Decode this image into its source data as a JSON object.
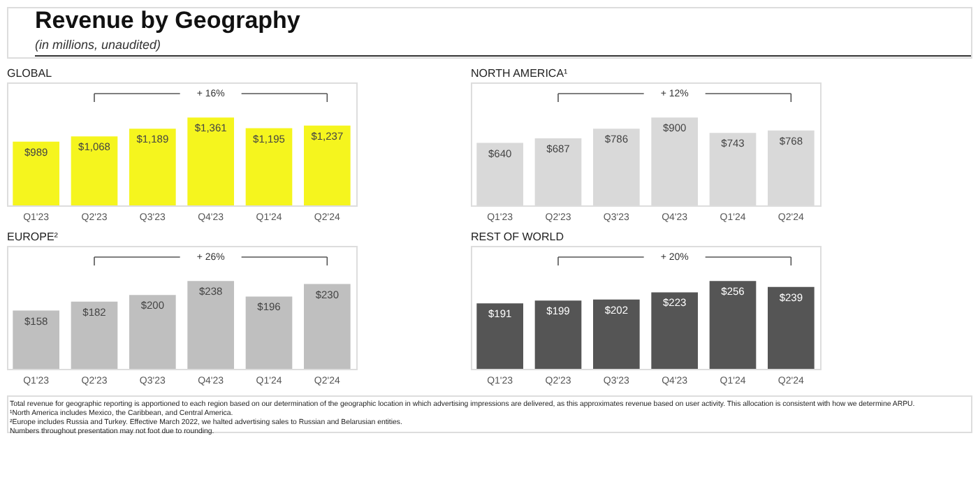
{
  "chart_data": [
    {
      "type": "other",
      "title": "Revenue by Geography",
      "subtitle": "(in millions, unaudited)"
    },
    {
      "type": "bar",
      "title": "GLOBAL",
      "categories": [
        "Q1'23",
        "Q2'23",
        "Q3'23",
        "Q4'23",
        "Q1'24",
        "Q2'24"
      ],
      "values": [
        989,
        1068,
        1189,
        1361,
        1195,
        1237
      ],
      "value_labels": [
        "$989",
        "$1,068",
        "$1,189",
        "$1,361",
        "$1,195",
        "$1,237"
      ],
      "color": "#f5f51e",
      "annotations": [
        "+ 16%"
      ]
    },
    {
      "type": "bar",
      "title": "NORTH AMERICA¹",
      "categories": [
        "Q1'23",
        "Q2'23",
        "Q3'23",
        "Q4'23",
        "Q1'24",
        "Q2'24"
      ],
      "values": [
        640,
        687,
        786,
        900,
        743,
        768
      ],
      "value_labels": [
        "$640",
        "$687",
        "$786",
        "$900",
        "$743",
        "$768"
      ],
      "color": "#d9d9d9",
      "annotations": [
        "+ 12%"
      ]
    },
    {
      "type": "bar",
      "title": "EUROPE²",
      "categories": [
        "Q1'23",
        "Q2'23",
        "Q3'23",
        "Q4'23",
        "Q1'24",
        "Q2'24"
      ],
      "values": [
        158,
        182,
        200,
        238,
        196,
        230
      ],
      "value_labels": [
        "$158",
        "$182",
        "$200",
        "$238",
        "$196",
        "$230"
      ],
      "color": "#bfbfbf",
      "annotations": [
        "+ 26%"
      ]
    },
    {
      "type": "bar",
      "title": "REST OF WORLD",
      "categories": [
        "Q1'23",
        "Q2'23",
        "Q3'23",
        "Q4'23",
        "Q1'24",
        "Q2'24"
      ],
      "values": [
        191,
        199,
        202,
        223,
        256,
        239
      ],
      "value_labels": [
        "$191",
        "$199",
        "$202",
        "$223",
        "$256",
        "$239"
      ],
      "color": "#555555",
      "annotations": [
        "+ 20%"
      ]
    },
    {
      "type": "other",
      "annotations": [
        "Total revenue for geographic reporting is apportioned to each region based on our determination of the geographic location in which advertising impressions are delivered, as this approximates revenue based on user activity. This allocation is consistent with how we determine ARPU.",
        "¹North America includes Mexico, the Caribbean, and Central America.",
        "²Europe includes Russia and Turkey. Effective March 2022, we halted advertising sales to Russian and Belarusian entities.",
        "Numbers throughout presentation may not foot due to rounding."
      ]
    }
  ]
}
